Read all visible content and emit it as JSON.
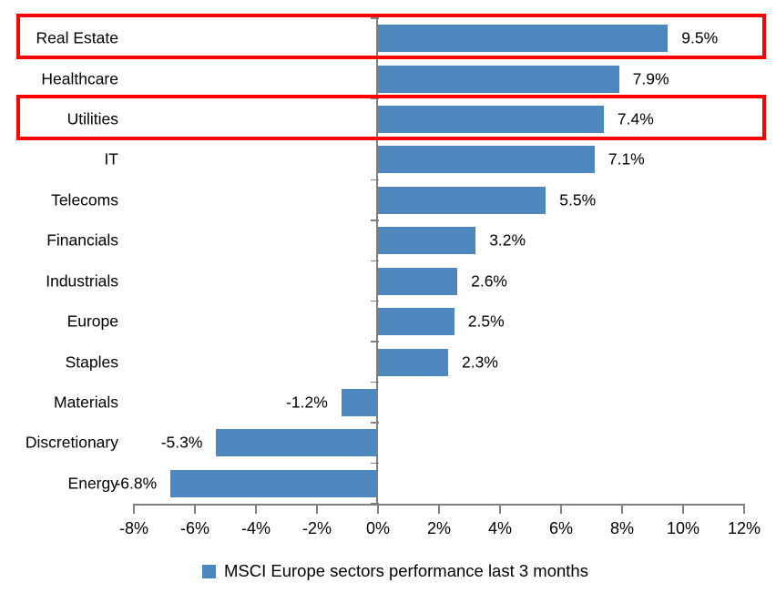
{
  "chart_data": {
    "type": "bar",
    "orientation": "horizontal",
    "categories": [
      "Real Estate",
      "Healthcare",
      "Utilities",
      "IT",
      "Telecoms",
      "Financials",
      "Industrials",
      "Europe",
      "Staples",
      "Materials",
      "Discretionary",
      "Energy"
    ],
    "values": [
      9.5,
      7.9,
      7.4,
      7.1,
      5.5,
      3.2,
      2.6,
      2.5,
      2.3,
      -1.2,
      -5.3,
      -6.8
    ],
    "value_labels": [
      "9.5%",
      "7.9%",
      "7.4%",
      "7.1%",
      "5.5%",
      "3.2%",
      "2.6%",
      "2.5%",
      "2.3%",
      "-1.2%",
      "-5.3%",
      "-6.8%"
    ],
    "xlim": [
      -8,
      12
    ],
    "x_tick_step": 2,
    "x_tick_labels": [
      "-8%",
      "-6%",
      "-4%",
      "-2%",
      "0%",
      "2%",
      "4%",
      "6%",
      "8%",
      "10%",
      "12%"
    ],
    "grid": false,
    "legend_position": "bottom",
    "legend": [
      {
        "label": "MSCI Europe sectors performance last 3 months",
        "color": "#4E87BD"
      }
    ],
    "bar_color": "#4E87BD",
    "axis_color": "#808080",
    "text_color": "#000000",
    "highlight_color": "#FF0000",
    "highlighted_categories": [
      "Real Estate",
      "Utilities"
    ]
  }
}
